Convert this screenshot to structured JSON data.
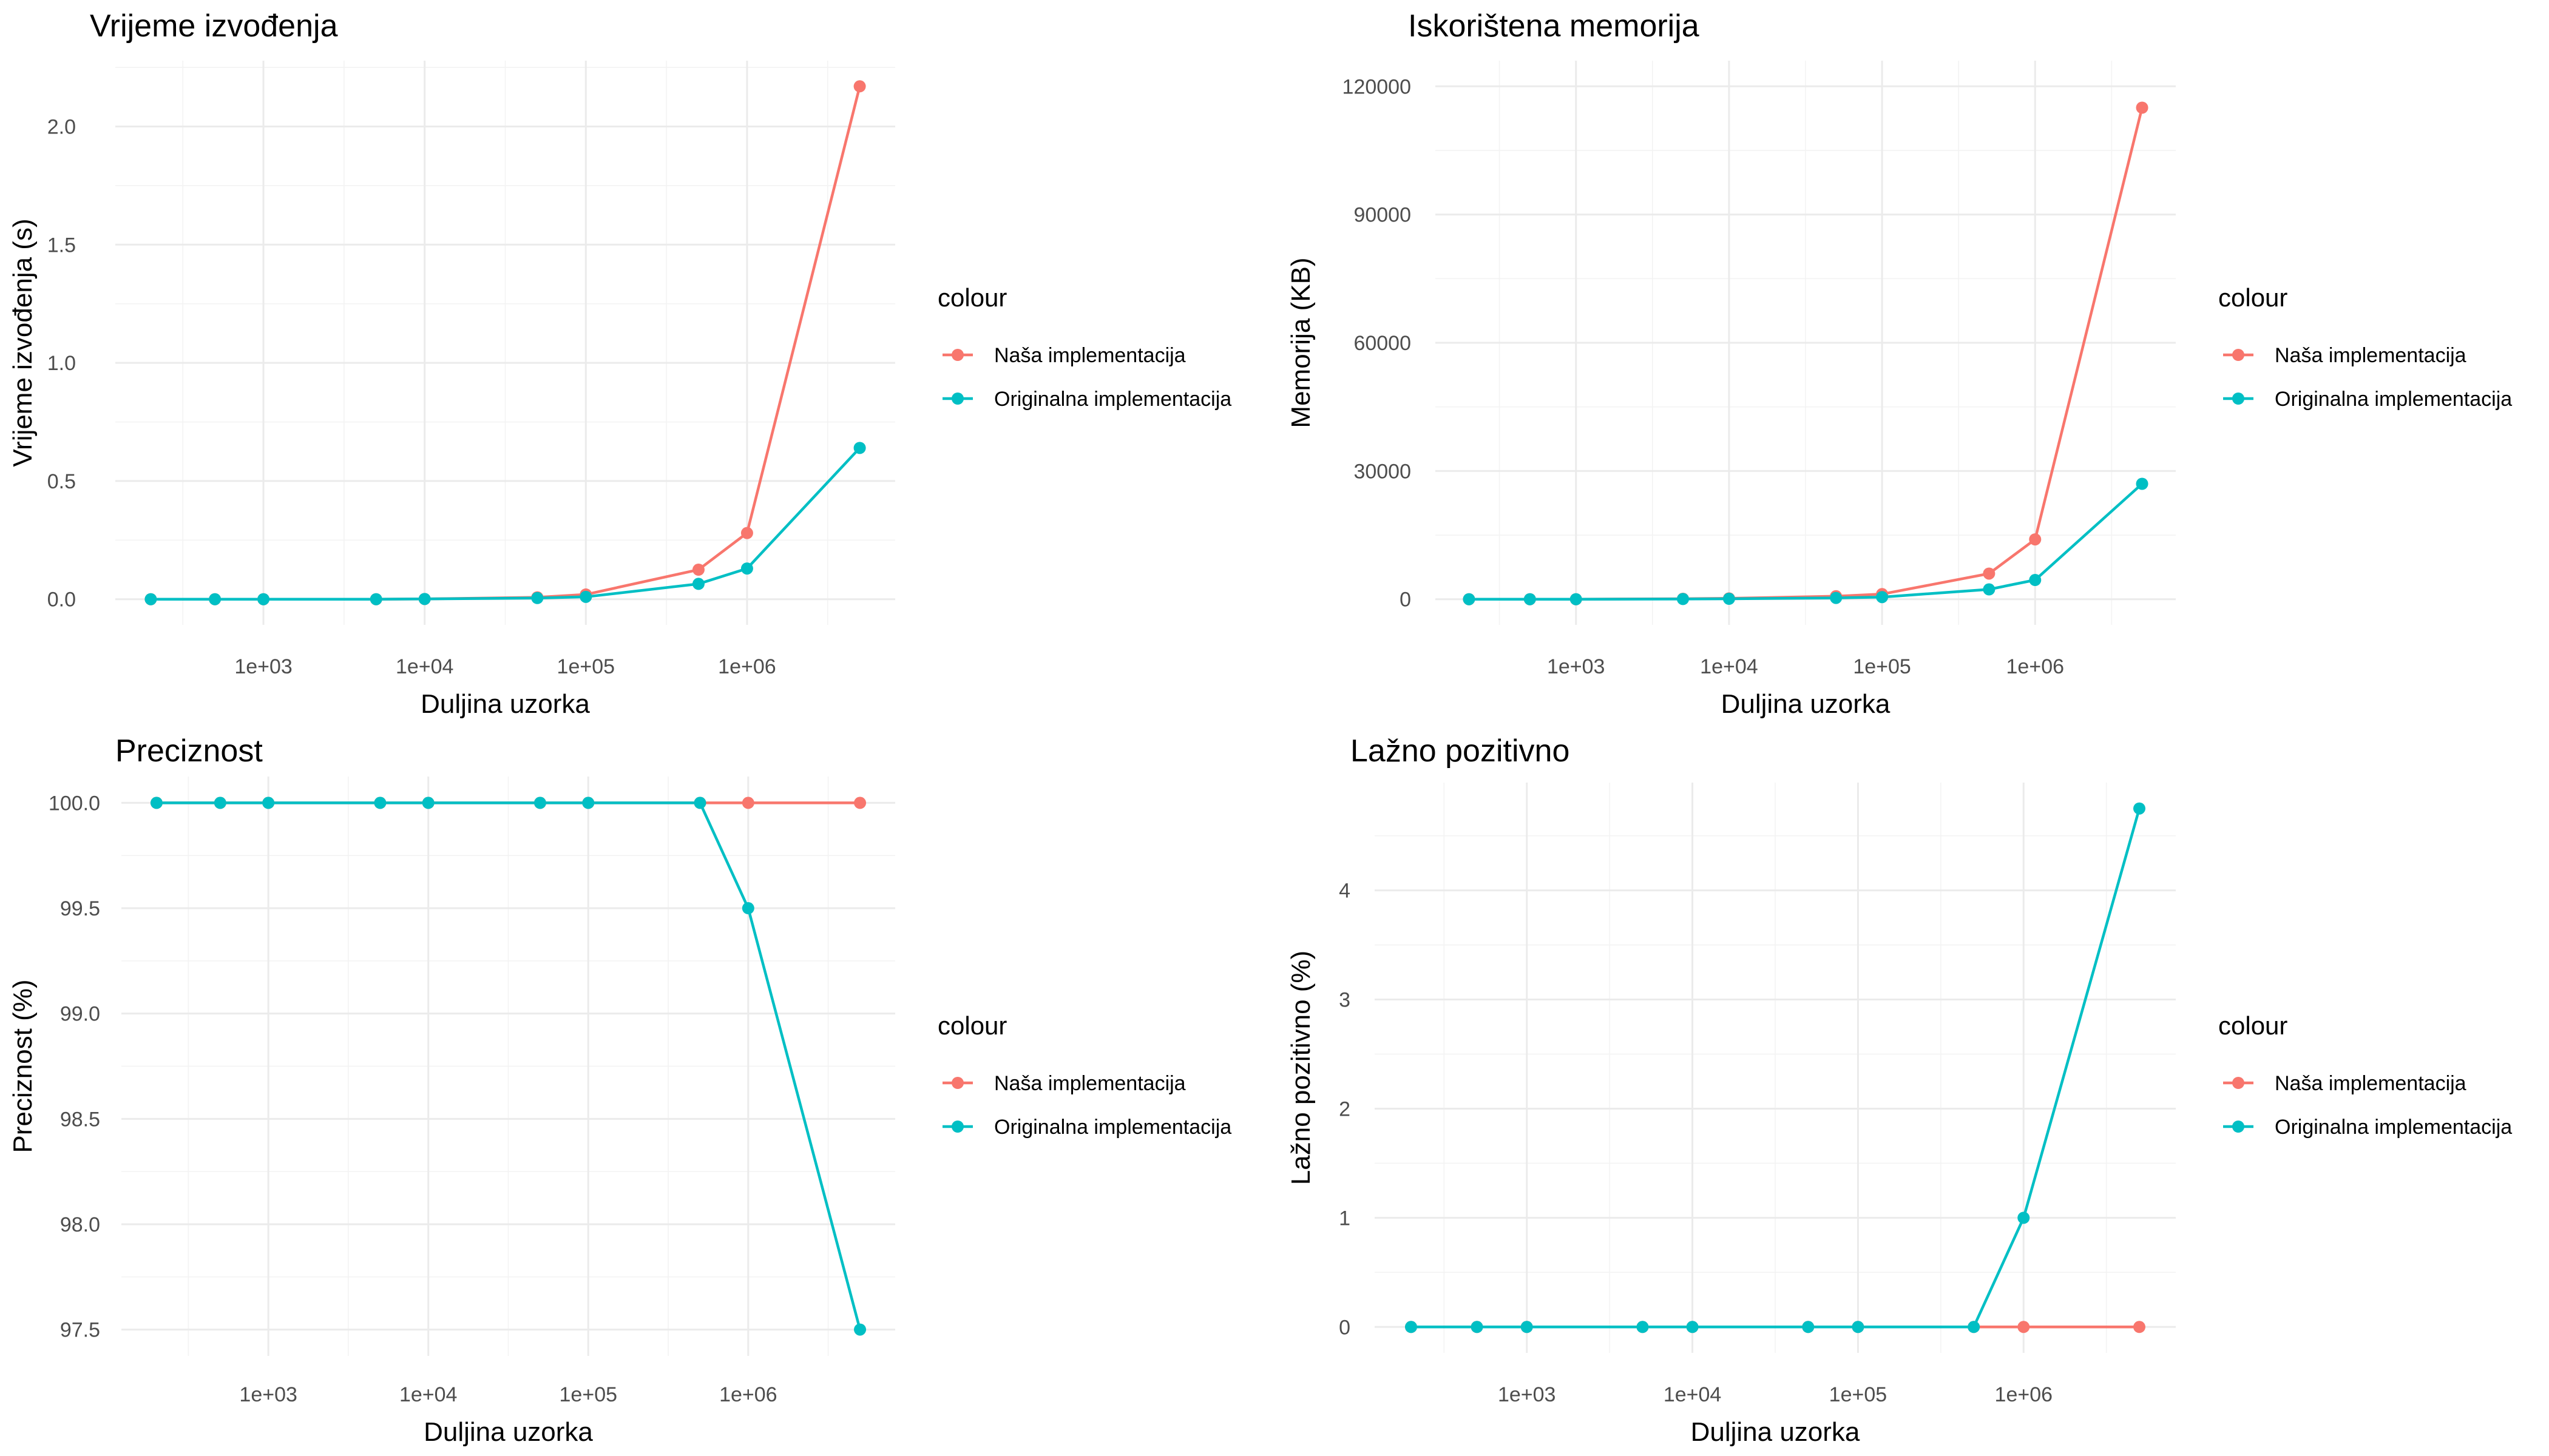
{
  "chart_data": [
    {
      "type": "line",
      "title": "Vrijeme izvođenja",
      "xlabel": "Duljina uzorka",
      "ylabel": "Vrijeme izvođenja (s)",
      "x_scale": "log10",
      "x_ticks": [
        1000,
        10000,
        100000,
        1000000
      ],
      "x_tick_labels": [
        "1e+03",
        "1e+04",
        "1e+05",
        "1e+06"
      ],
      "xlim": [
        200,
        5000000
      ],
      "y_ticks": [
        0,
        0.5,
        1,
        1.5,
        2
      ],
      "y_tick_labels": [
        "0.0",
        "0.5",
        "1.0",
        "1.5",
        "2.0"
      ],
      "ylim": [
        0,
        2.17
      ],
      "x": [
        200,
        500,
        1000,
        5000,
        10000,
        50000,
        100000,
        500000,
        1000000,
        5000000
      ],
      "series": [
        {
          "name": "Naša implementacija",
          "color": "#F8766D",
          "values": [
            0,
            0,
            0,
            0,
            0.001,
            0.008,
            0.02,
            0.125,
            0.28,
            2.17
          ]
        },
        {
          "name": "Originalna implementacija",
          "color": "#00BFC4",
          "values": [
            0,
            0,
            0,
            0,
            0.001,
            0.005,
            0.01,
            0.065,
            0.13,
            0.64
          ]
        }
      ],
      "legend": {
        "title": "colour",
        "position": "right"
      },
      "grid": true
    },
    {
      "type": "line",
      "title": "Iskorištena memorija",
      "xlabel": "Duljina uzorka",
      "ylabel": "Memorija (KB)",
      "x_scale": "log10",
      "x_ticks": [
        1000,
        10000,
        100000,
        1000000
      ],
      "x_tick_labels": [
        "1e+03",
        "1e+04",
        "1e+05",
        "1e+06"
      ],
      "xlim": [
        200,
        5000000
      ],
      "y_ticks": [
        0,
        30000,
        60000,
        90000,
        120000
      ],
      "y_tick_labels": [
        "0",
        "30000",
        "60000",
        "90000",
        "120000"
      ],
      "ylim": [
        0,
        120000
      ],
      "x": [
        200,
        500,
        1000,
        5000,
        10000,
        50000,
        100000,
        500000,
        1000000,
        5000000
      ],
      "series": [
        {
          "name": "Naša implementacija",
          "color": "#F8766D",
          "values": [
            0,
            0,
            0,
            100,
            200,
            700,
            1200,
            6000,
            14000,
            115000
          ]
        },
        {
          "name": "Originalna implementacija",
          "color": "#00BFC4",
          "values": [
            0,
            0,
            0,
            50,
            100,
            300,
            500,
            2300,
            4500,
            27000
          ]
        }
      ],
      "legend": {
        "title": "colour",
        "position": "right"
      },
      "grid": true
    },
    {
      "type": "line",
      "title": "Preciznost",
      "xlabel": "Duljina uzorka",
      "ylabel": "Preciznost (%)",
      "x_scale": "log10",
      "x_ticks": [
        1000,
        10000,
        100000,
        1000000
      ],
      "x_tick_labels": [
        "1e+03",
        "1e+04",
        "1e+05",
        "1e+06"
      ],
      "xlim": [
        200,
        5000000
      ],
      "y_ticks": [
        97.5,
        98,
        98.5,
        99,
        99.5,
        100
      ],
      "y_tick_labels": [
        "97.5",
        "98.0",
        "98.5",
        "99.0",
        "99.5",
        "100.0"
      ],
      "ylim": [
        97.5,
        100
      ],
      "x": [
        200,
        500,
        1000,
        5000,
        10000,
        50000,
        100000,
        500000,
        1000000,
        5000000
      ],
      "series": [
        {
          "name": "Naša implementacija",
          "color": "#F8766D",
          "values": [
            100,
            100,
            100,
            100,
            100,
            100,
            100,
            100,
            100,
            100
          ]
        },
        {
          "name": "Originalna implementacija",
          "color": "#00BFC4",
          "values": [
            100,
            100,
            100,
            100,
            100,
            100,
            100,
            100,
            99.5,
            97.5
          ]
        }
      ],
      "legend": {
        "title": "colour",
        "position": "right"
      },
      "grid": true
    },
    {
      "type": "line",
      "title": "Lažno pozitivno",
      "xlabel": "Duljina uzorka",
      "ylabel": "Lažno pozitivno (%)",
      "x_scale": "log10",
      "x_ticks": [
        1000,
        10000,
        100000,
        1000000
      ],
      "x_tick_labels": [
        "1e+03",
        "1e+04",
        "1e+05",
        "1e+06"
      ],
      "xlim": [
        200,
        5000000
      ],
      "y_ticks": [
        0,
        1,
        2,
        3,
        4
      ],
      "y_tick_labels": [
        "0",
        "1",
        "2",
        "3",
        "4"
      ],
      "ylim": [
        0,
        4.75
      ],
      "x": [
        200,
        500,
        1000,
        5000,
        10000,
        50000,
        100000,
        500000,
        1000000,
        5000000
      ],
      "series": [
        {
          "name": "Naša implementacija",
          "color": "#F8766D",
          "values": [
            0,
            0,
            0,
            0,
            0,
            0,
            0,
            0,
            0,
            0
          ]
        },
        {
          "name": "Originalna implementacija",
          "color": "#00BFC4",
          "values": [
            0,
            0,
            0,
            0,
            0,
            0,
            0,
            0,
            1,
            4.75
          ]
        }
      ],
      "legend": {
        "title": "colour",
        "position": "right"
      },
      "grid": true
    }
  ]
}
